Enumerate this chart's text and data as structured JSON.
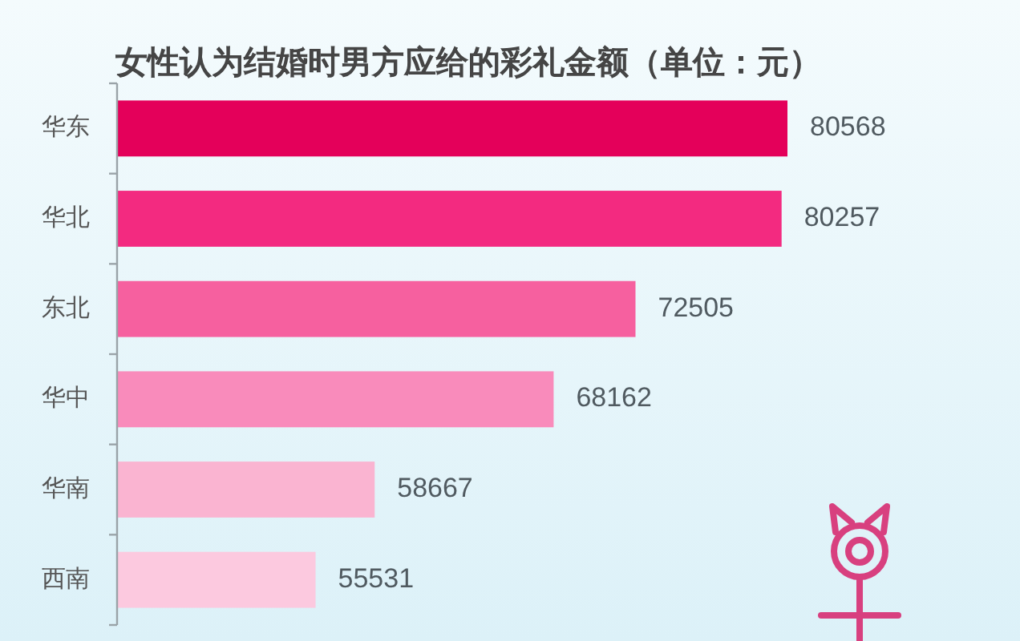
{
  "chart_data": {
    "type": "bar",
    "orientation": "horizontal",
    "title": "女性认为结婚时男方应给的彩礼金额（单位：元）",
    "categories": [
      "华东",
      "华北",
      "东北",
      "华中",
      "华南",
      "西南"
    ],
    "values": [
      80568,
      80257,
      72505,
      68162,
      58667,
      55531
    ],
    "colors": [
      "#e4005a",
      "#f32a80",
      "#f6609f",
      "#f98bbb",
      "#fab4d1",
      "#fcc9df"
    ],
    "xlim": [
      45000,
      80568
    ],
    "data_labels": true,
    "tick_labels": "y"
  }
}
